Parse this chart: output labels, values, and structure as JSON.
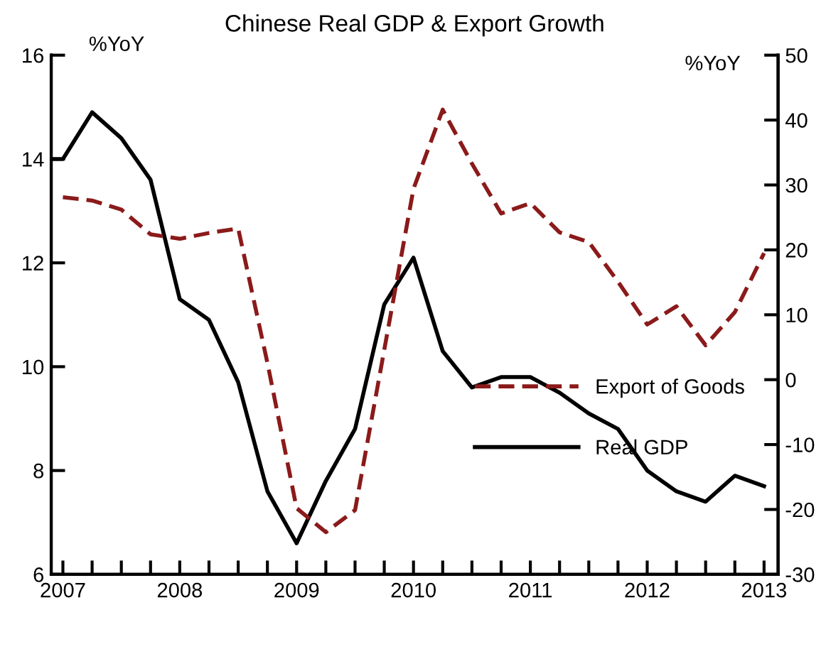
{
  "chart_data": {
    "type": "line",
    "title": "Chinese Real GDP & Export Growth",
    "ylabel": "%YoY",
    "y2label": "%YoY",
    "series": [
      {
        "name": "Export of Goods",
        "color": "#8b1a1a",
        "axis": "y2",
        "line_style": "dashed",
        "x": [
          2007.0,
          2007.25,
          2007.5,
          2007.75,
          2008.0,
          2008.25,
          2008.5,
          2008.75,
          2009.0,
          2009.25,
          2009.5,
          2009.75,
          2010.0,
          2010.25,
          2010.5,
          2010.75,
          2011.0,
          2011.25,
          2011.5,
          2011.75,
          2012.0,
          2012.25,
          2012.5,
          2012.75,
          2013.0
        ],
        "values": [
          28.1,
          27.6,
          26.2,
          22.4,
          21.7,
          22.6,
          23.3,
          2.6,
          -19.8,
          -23.5,
          -20.1,
          4.6,
          29.4,
          41.6,
          33.3,
          25.6,
          27.2,
          22.7,
          21.2,
          15.1,
          8.5,
          11.3,
          5.3,
          10.4,
          19.5
        ]
      },
      {
        "name": "Real GDP",
        "color": "#000000",
        "axis": "y",
        "line_style": "solid",
        "x": [
          2006.9,
          2007.0,
          2007.25,
          2007.5,
          2007.75,
          2008.0,
          2008.25,
          2008.5,
          2008.75,
          2009.0,
          2009.25,
          2009.5,
          2009.75,
          2010.0,
          2010.25,
          2010.5,
          2010.75,
          2011.0,
          2011.25,
          2011.5,
          2011.75,
          2012.0,
          2012.25,
          2012.5,
          2012.75,
          2013.0
        ],
        "values": [
          14.0,
          14.0,
          14.9,
          14.4,
          13.6,
          11.3,
          10.9,
          9.7,
          7.6,
          6.6,
          7.8,
          8.8,
          11.2,
          12.1,
          10.3,
          9.6,
          9.8,
          9.8,
          9.5,
          9.1,
          8.8,
          8.0,
          7.6,
          7.4,
          7.9,
          7.7
        ]
      }
    ],
    "xlim": [
      2006.9,
      2013.12
    ],
    "xticks": [
      2007,
      {
        "value": 2007.25,
        "label": null
      },
      {
        "value": 2007.5,
        "label": null
      },
      {
        "value": 2007.75,
        "label": null
      },
      2008,
      {
        "value": 2008.25,
        "label": null
      },
      {
        "value": 2008.5,
        "label": null
      },
      {
        "value": 2008.75,
        "label": null
      },
      2009,
      {
        "value": 2009.25,
        "label": null
      },
      {
        "value": 2009.5,
        "label": null
      },
      {
        "value": 2009.75,
        "label": null
      },
      2010,
      {
        "value": 2010.25,
        "label": null
      },
      {
        "value": 2010.5,
        "label": null
      },
      {
        "value": 2010.75,
        "label": null
      },
      2011,
      {
        "value": 2011.25,
        "label": null
      },
      {
        "value": 2011.5,
        "label": null
      },
      {
        "value": 2011.75,
        "label": null
      },
      2012,
      {
        "value": 2012.25,
        "label": null
      },
      {
        "value": 2012.5,
        "label": null
      },
      {
        "value": 2012.75,
        "label": null
      },
      2013
    ],
    "ylim": [
      6,
      16
    ],
    "yticks": [
      6,
      8,
      10,
      12,
      14,
      16
    ],
    "y2lim": [
      -30,
      50
    ],
    "y2ticks": [
      -30,
      -20,
      -10,
      0,
      10,
      20,
      30,
      40,
      50
    ],
    "grid": false,
    "legend": "right",
    "marker": "none"
  }
}
